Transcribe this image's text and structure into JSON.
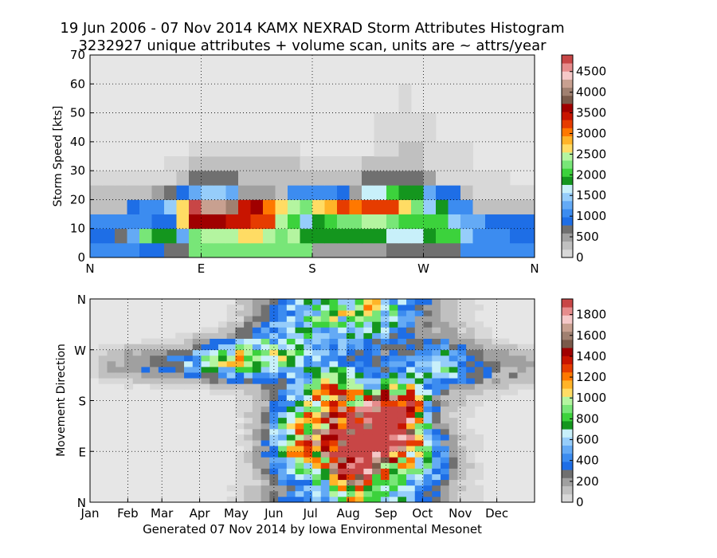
{
  "title_line1": "19 Jun 2006 - 07 Nov 2014 KAMX NEXRAD Storm Attributes Histogram",
  "title_line2": "3232927 unique attributes + volume scan, units are ~ attrs/year",
  "footer": "Generated 07 Nov 2014 by Iowa Environmental Mesonet",
  "colors": {
    "scale": [
      "#d8d8d8",
      "#c0c0c0",
      "#a0a0a0",
      "#707070",
      "#1e6ee6",
      "#3c8cf0",
      "#64aaf5",
      "#96cdfa",
      "#c8f0fa",
      "#14961e",
      "#3cd23c",
      "#78e678",
      "#b4f5a0",
      "#ffdc64",
      "#ffb428",
      "#ff7800",
      "#e63c00",
      "#c81400",
      "#a00000",
      "#7a5a4a",
      "#a08070",
      "#c8a090",
      "#f5c8c8",
      "#e68c8c",
      "#c84646"
    ],
    "background": "#e6e6e6"
  },
  "chart_data": [
    {
      "type": "heatmap",
      "name": "speed-direction",
      "xlabel": "",
      "ylabel": "Storm Speed [kts]",
      "x_ticks": [
        "N",
        "E",
        "S",
        "W",
        "N"
      ],
      "xlim": [
        0,
        360
      ],
      "y_ticks": [
        "0",
        "10",
        "20",
        "30",
        "40",
        "50",
        "60",
        "70"
      ],
      "ylim": [
        0,
        70
      ],
      "x_bin_width_deg": 10,
      "y_bin_width_kts": 5,
      "grid": true,
      "colorbar_ticks": [
        "0",
        "500",
        "1000",
        "1500",
        "2000",
        "2500",
        "3000",
        "3500",
        "4000",
        "4500"
      ],
      "colorbar_max": 4900,
      "rows": [
        [
          1100,
          1100,
          1100,
          1100,
          800,
          800,
          600,
          600,
          2200,
          2200,
          2200,
          2200,
          2200,
          2200,
          2200,
          2200,
          2200,
          2200,
          400,
          400,
          400,
          400,
          400,
          400,
          600,
          600,
          600,
          600,
          600,
          600,
          1000,
          1000,
          1000,
          1000,
          1000,
          1000
        ],
        [
          900,
          900,
          700,
          1200,
          2200,
          1900,
          1800,
          1300,
          2300,
          2400,
          2500,
          2500,
          2600,
          2700,
          2500,
          2300,
          2400,
          1800,
          1900,
          1900,
          1800,
          1800,
          1800,
          1800,
          1600,
          1700,
          1700,
          1900,
          2000,
          2100,
          1500,
          1000,
          1000,
          1000,
          800,
          900
        ],
        [
          1000,
          1000,
          1000,
          1000,
          1000,
          900,
          800,
          2600,
          3600,
          3600,
          3600,
          3500,
          3400,
          3200,
          3300,
          2400,
          2100,
          1500,
          1900,
          2100,
          2200,
          2300,
          2400,
          2400,
          2300,
          2100,
          2100,
          2100,
          2100,
          1400,
          1200,
          1200,
          900,
          900,
          800,
          800
        ],
        [
          300,
          300,
          300,
          800,
          1000,
          1100,
          1400,
          2700,
          4800,
          4300,
          4300,
          4000,
          3500,
          3600,
          3000,
          2600,
          2500,
          2300,
          2700,
          2800,
          3200,
          3100,
          3200,
          3200,
          3200,
          2700,
          2300,
          1500,
          1900,
          1100,
          1100,
          300,
          300,
          300,
          300,
          300
        ],
        [
          250,
          250,
          250,
          250,
          300,
          500,
          600,
          900,
          1300,
          1500,
          1500,
          1300,
          400,
          400,
          400,
          200,
          1000,
          1000,
          1000,
          1000,
          800,
          400,
          1700,
          1700,
          2000,
          1800,
          1800,
          1300,
          800,
          800,
          200,
          100,
          100,
          100,
          100,
          50
        ],
        [
          50,
          50,
          50,
          50,
          150,
          150,
          150,
          200,
          600,
          600,
          600,
          600,
          200,
          200,
          200,
          200,
          250,
          250,
          250,
          300,
          250,
          350,
          650,
          650,
          650,
          700,
          700,
          450,
          150,
          150,
          100,
          100,
          50,
          50,
          0,
          0
        ],
        [
          0,
          0,
          0,
          0,
          0,
          0,
          100,
          100,
          200,
          200,
          200,
          250,
          300,
          300,
          300,
          300,
          250,
          150,
          150,
          150,
          150,
          150,
          200,
          250,
          250,
          250,
          250,
          150,
          100,
          100,
          100,
          0,
          0,
          0,
          0,
          0
        ],
        [
          0,
          0,
          0,
          0,
          0,
          0,
          0,
          0,
          50,
          50,
          50,
          50,
          50,
          50,
          50,
          100,
          100,
          0,
          0,
          0,
          0,
          0,
          0,
          150,
          150,
          250,
          250,
          100,
          100,
          100,
          50,
          0,
          0,
          0,
          0,
          0
        ],
        [
          0,
          0,
          0,
          0,
          0,
          0,
          0,
          0,
          0,
          0,
          0,
          0,
          0,
          0,
          0,
          0,
          0,
          0,
          0,
          0,
          0,
          0,
          0,
          50,
          50,
          100,
          100,
          50,
          0,
          0,
          0,
          0,
          0,
          0,
          0,
          0
        ],
        [
          0,
          0,
          0,
          0,
          0,
          0,
          0,
          0,
          0,
          0,
          0,
          0,
          0,
          0,
          0,
          0,
          0,
          0,
          0,
          0,
          0,
          0,
          0,
          50,
          50,
          100,
          100,
          50,
          0,
          0,
          0,
          0,
          0,
          0,
          0,
          0
        ],
        [
          0,
          0,
          0,
          0,
          0,
          0,
          0,
          0,
          0,
          0,
          0,
          0,
          0,
          0,
          0,
          0,
          0,
          0,
          0,
          0,
          0,
          0,
          0,
          0,
          0,
          50,
          0,
          0,
          0,
          0,
          0,
          0,
          0,
          0,
          0,
          0
        ],
        [
          0,
          0,
          0,
          0,
          0,
          0,
          0,
          0,
          0,
          0,
          0,
          0,
          0,
          0,
          0,
          0,
          0,
          0,
          0,
          0,
          0,
          0,
          0,
          0,
          0,
          50,
          0,
          0,
          0,
          0,
          0,
          0,
          0,
          0,
          0,
          0
        ],
        [
          0,
          0,
          0,
          0,
          0,
          0,
          0,
          0,
          0,
          0,
          0,
          0,
          0,
          0,
          0,
          0,
          0,
          0,
          0,
          0,
          0,
          0,
          0,
          0,
          0,
          0,
          0,
          0,
          0,
          0,
          0,
          0,
          0,
          0,
          0,
          0
        ],
        [
          0,
          0,
          0,
          0,
          0,
          0,
          0,
          0,
          0,
          0,
          0,
          0,
          0,
          0,
          0,
          0,
          0,
          0,
          0,
          0,
          0,
          0,
          0,
          0,
          0,
          0,
          0,
          0,
          0,
          0,
          0,
          0,
          0,
          0,
          0,
          0
        ]
      ]
    },
    {
      "type": "heatmap",
      "name": "movement-month",
      "xlabel": "",
      "ylabel": "Movement Direction",
      "x_ticks": [
        "Jan",
        "Feb",
        "Mar",
        "Apr",
        "May",
        "Jun",
        "Jul",
        "Aug",
        "Sep",
        "Oct",
        "Nov",
        "Dec"
      ],
      "y_ticks": [
        "N",
        "E",
        "S",
        "W",
        "N"
      ],
      "ylim": [
        0,
        360
      ],
      "x_bins": 52,
      "y_bins": 36,
      "grid": true,
      "colorbar_ticks": [
        "0",
        "200",
        "400",
        "600",
        "800",
        "1000",
        "1200",
        "1400",
        "1600",
        "1800"
      ],
      "colorbar_max": 1950,
      "clusters": [
        {
          "week": 24.5,
          "dir": 110,
          "sw": 2.4,
          "sd": 45,
          "amp": 1000
        },
        {
          "week": 31.0,
          "dir": 110,
          "sw": 2.4,
          "sd": 35,
          "amp": 1750
        },
        {
          "week": 34.5,
          "dir": 135,
          "sw": 2.0,
          "sd": 40,
          "amp": 1500
        },
        {
          "week": 37.0,
          "dir": 160,
          "sw": 1.8,
          "sd": 45,
          "amp": 1100
        },
        {
          "week": 28.5,
          "dir": 190,
          "sw": 2.4,
          "sd": 35,
          "amp": 900
        },
        {
          "week": 30.5,
          "dir": 60,
          "sw": 2.0,
          "sd": 30,
          "amp": 700
        },
        {
          "week": 33.0,
          "dir": 40,
          "sw": 3.0,
          "sd": 35,
          "amp": 500
        },
        {
          "week": 33.5,
          "dir": 330,
          "sw": 3.5,
          "sd": 30,
          "amp": 450
        },
        {
          "week": 22.0,
          "dir": 260,
          "sw": 3.0,
          "sd": 30,
          "amp": 600
        },
        {
          "week": 17.5,
          "dir": 255,
          "sw": 2.5,
          "sd": 25,
          "amp": 550
        },
        {
          "week": 14.0,
          "dir": 250,
          "sw": 2.5,
          "sd": 20,
          "amp": 420
        },
        {
          "week": 41.5,
          "dir": 245,
          "sw": 2.0,
          "sd": 30,
          "amp": 500
        },
        {
          "week": 39.5,
          "dir": 70,
          "sw": 2.0,
          "sd": 35,
          "amp": 500
        },
        {
          "week": 8.0,
          "dir": 245,
          "sw": 4.5,
          "sd": 20,
          "amp": 320
        },
        {
          "week": 47.0,
          "dir": 240,
          "sw": 4.0,
          "sd": 25,
          "amp": 250
        },
        {
          "week": 26.0,
          "dir": 330,
          "sw": 4.0,
          "sd": 35,
          "amp": 450
        }
      ],
      "baseline": 60
    }
  ]
}
